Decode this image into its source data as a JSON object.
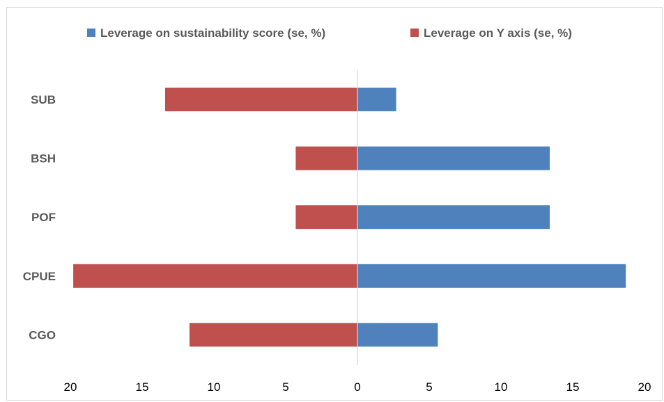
{
  "chart_data": {
    "type": "bar",
    "orientation": "horizontal-diverging",
    "categories": [
      "SUB",
      "BSH",
      "POF",
      "CPUE",
      "CGO"
    ],
    "series": [
      {
        "name": "Leverage on sustainability score (se, %)",
        "color": "#4f81bd",
        "direction": "right",
        "values": [
          2.7,
          13.4,
          13.4,
          18.7,
          5.6
        ]
      },
      {
        "name": "Leverage on Y axis (se, %)",
        "color": "#c0504d",
        "direction": "left",
        "values": [
          13.4,
          4.3,
          4.3,
          19.8,
          11.7
        ]
      }
    ],
    "xticks": [
      "20",
      "15",
      "10",
      "5",
      "0",
      "5",
      "10",
      "15",
      "20"
    ],
    "xlim": [
      -20,
      20
    ],
    "legend_position": "top",
    "grid": false,
    "title": "",
    "xlabel": "",
    "ylabel": ""
  }
}
